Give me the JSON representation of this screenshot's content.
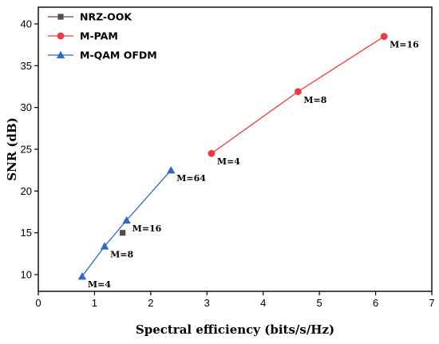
{
  "chart_data": {
    "type": "scatter",
    "xlabel": "Spectral efficiency (bits/s/Hz)",
    "ylabel": "SNR (dB)",
    "xlim": [
      0,
      7
    ],
    "ylim": [
      8,
      42
    ],
    "xticks": [
      0,
      1,
      2,
      3,
      4,
      5,
      6,
      7
    ],
    "yticks": [
      10,
      15,
      20,
      25,
      30,
      35,
      40
    ],
    "grid": false,
    "legend_position": "top-left",
    "series": [
      {
        "name": "NRZ-OOK",
        "color": "#4d4d4d",
        "marker": "square",
        "line": false,
        "points": [
          {
            "x": 1.5,
            "y": 15.0,
            "label": ""
          }
        ]
      },
      {
        "name": "M-PAM",
        "color": "#f0393e",
        "marker": "circle",
        "line": true,
        "points": [
          {
            "x": 3.08,
            "y": 24.5,
            "label": "M=4"
          },
          {
            "x": 4.62,
            "y": 31.9,
            "label": "M=8"
          },
          {
            "x": 6.15,
            "y": 38.5,
            "label": "M=16"
          }
        ]
      },
      {
        "name": "M-QAM OFDM",
        "color": "#2f68c8",
        "marker": "triangle",
        "line": true,
        "points": [
          {
            "x": 0.78,
            "y": 9.8,
            "label": "M=4"
          },
          {
            "x": 1.18,
            "y": 13.4,
            "label": "M=8"
          },
          {
            "x": 1.57,
            "y": 16.5,
            "label": "M=16"
          },
          {
            "x": 2.36,
            "y": 22.5,
            "label": "M=64"
          }
        ]
      }
    ]
  }
}
